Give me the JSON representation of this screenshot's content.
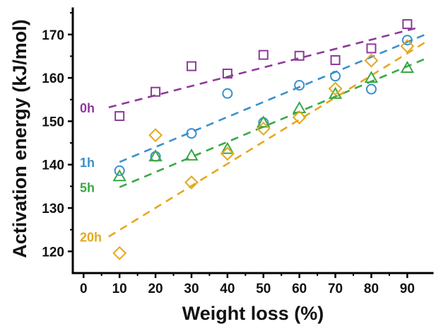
{
  "chart_data": {
    "type": "scatter",
    "title": "",
    "xlabel": "Weight loss (%)",
    "ylabel": "Activation energy (kJ/mol)",
    "xlim": [
      -3,
      97
    ],
    "ylim": [
      115,
      176
    ],
    "xticks": [
      0,
      10,
      20,
      30,
      40,
      50,
      60,
      70,
      80,
      90
    ],
    "yticks": [
      120,
      130,
      140,
      150,
      160,
      170
    ],
    "grid": false,
    "legend": "inline-left",
    "series": [
      {
        "name": "0h",
        "color": "#8e3a9a",
        "marker": "square",
        "x": [
          10,
          20,
          30,
          40,
          50,
          60,
          70,
          80,
          90
        ],
        "y": [
          151.2,
          156.8,
          162.7,
          161.0,
          165.3,
          165.1,
          164.1,
          166.8,
          172.4
        ],
        "fit": [
          [
            7,
            153.2
          ],
          [
            93,
            171.6
          ]
        ]
      },
      {
        "name": "1h",
        "color": "#3a90cc",
        "marker": "circle",
        "x": [
          10,
          20,
          30,
          40,
          50,
          60,
          70,
          80,
          90
        ],
        "y": [
          138.6,
          141.9,
          147.2,
          156.4,
          149.7,
          158.3,
          160.4,
          157.4,
          168.7
        ],
        "fit": [
          [
            10,
            140.6
          ],
          [
            95,
            170.0
          ]
        ]
      },
      {
        "name": "5h",
        "color": "#3aa845",
        "marker": "triangle",
        "x": [
          10,
          20,
          30,
          40,
          50,
          60,
          70,
          80,
          90
        ],
        "y": [
          137.3,
          141.9,
          142.1,
          143.6,
          149.7,
          153.0,
          156.3,
          160.0,
          162.3
        ],
        "fit": [
          [
            10,
            134.8
          ],
          [
            95,
            164.4
          ]
        ]
      },
      {
        "name": "20h",
        "color": "#e5a81e",
        "marker": "diamond",
        "x": [
          10,
          20,
          30,
          40,
          50,
          60,
          70,
          80,
          90
        ],
        "y": [
          119.6,
          146.8,
          135.9,
          142.5,
          148.3,
          150.9,
          157.5,
          164.0,
          167.3
        ],
        "fit": [
          [
            7,
            123.4
          ],
          [
            95,
            168.2
          ]
        ]
      }
    ]
  }
}
